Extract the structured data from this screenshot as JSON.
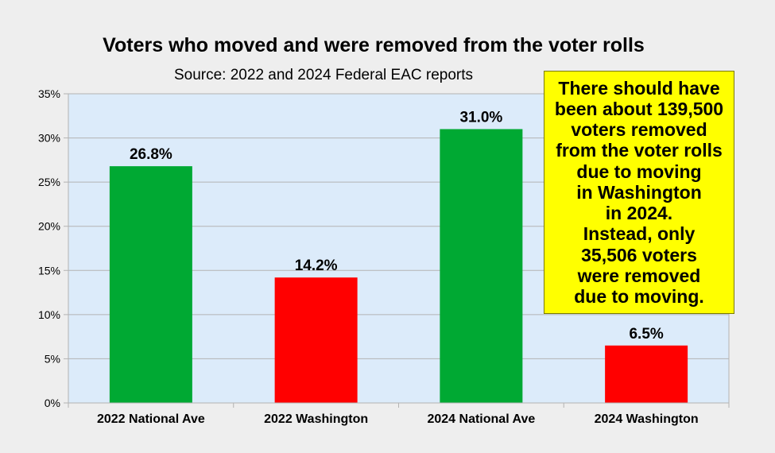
{
  "chart_data": {
    "type": "bar",
    "title": "Voters who moved and were removed from the voter rolls",
    "subtitle": "Source: 2022 and 2024 Federal EAC reports",
    "categories": [
      "2022 National Ave",
      "2022 Washington",
      "2024 National Ave",
      "2024 Washington"
    ],
    "values": [
      26.8,
      14.2,
      31.0,
      6.5
    ],
    "data_labels": [
      "26.8%",
      "14.2%",
      "31.0%",
      "6.5%"
    ],
    "bar_colors": [
      "#00a933",
      "#ff0000",
      "#00a933",
      "#ff0000"
    ],
    "ylim": [
      0,
      35
    ],
    "yticks": [
      0,
      5,
      10,
      15,
      20,
      25,
      30,
      35
    ],
    "ytick_labels": [
      "0%",
      "5%",
      "10%",
      "15%",
      "20%",
      "25%",
      "30%",
      "35%"
    ],
    "xlabel": "",
    "ylabel": "",
    "grid": true,
    "plot_background": "#dcebfa"
  },
  "annotation": {
    "lines": [
      "There should have",
      "been about 139,500",
      "voters removed",
      "from the voter rolls",
      "due to moving",
      "in Washington",
      "in 2024.",
      "Instead, only",
      "35,506 voters",
      "were removed",
      "due to moving."
    ],
    "background": "#ffff00"
  }
}
